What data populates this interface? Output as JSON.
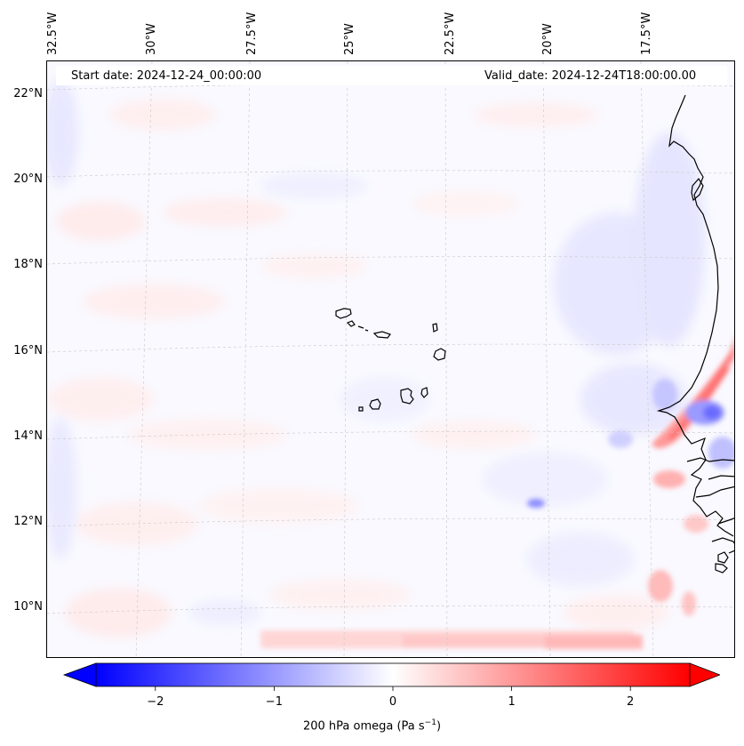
{
  "header": {
    "start_date": "Start date: 2024-12-24_00:00:00",
    "valid_date": "Valid_date: 2024-12-24T18:00:00.00"
  },
  "map": {
    "lon_labels": [
      "32.5°W",
      "30°W",
      "27.5°W",
      "25°W",
      "22.5°W",
      "20°W",
      "17.5°W"
    ],
    "lat_labels": [
      "22°N",
      "20°N",
      "18°N",
      "16°N",
      "14°N",
      "12°N",
      "10°N"
    ],
    "features": [
      "Cape Verde islands",
      "West African coastline"
    ]
  },
  "colorbar": {
    "tick_labels": [
      "−2",
      "−1",
      "0",
      "1",
      "2"
    ],
    "tick_values": [
      -2,
      -1,
      0,
      1,
      2
    ],
    "range": [
      -2.5,
      2.5
    ],
    "title_main": "200 hPa omega (Pa s",
    "title_sup": "−1",
    "title_close": ")",
    "colors": {
      "min": "#0000ff",
      "mid": "#ffffff",
      "max": "#ff0000"
    }
  }
}
